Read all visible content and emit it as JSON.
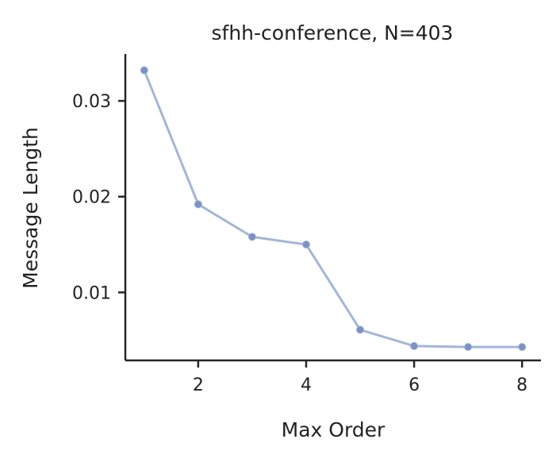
{
  "chart_data": {
    "type": "line",
    "title": "sfhh-conference, N=403",
    "xlabel": "Max Order",
    "ylabel": "Message Length",
    "x": [
      1,
      2,
      3,
      4,
      5,
      6,
      7,
      8
    ],
    "series": [
      {
        "values": [
          0.0332,
          0.0192,
          0.0158,
          0.015,
          0.0061,
          0.0044,
          0.0043,
          0.0043
        ]
      }
    ],
    "xlim": [
      0.65,
      8.35
    ],
    "ylim": [
      0.0029,
      0.0349
    ],
    "xticks": [
      2,
      4,
      6,
      8
    ],
    "xtick_labels": [
      "2",
      "4",
      "6",
      "8"
    ],
    "yticks": [
      0.01,
      0.02,
      0.03
    ],
    "ytick_labels": [
      "0.01",
      "0.02",
      "0.03"
    ],
    "grid": false,
    "colors": {
      "line": "#a3b6d6",
      "marker": "#7b92c2",
      "axis": "#262626"
    }
  }
}
